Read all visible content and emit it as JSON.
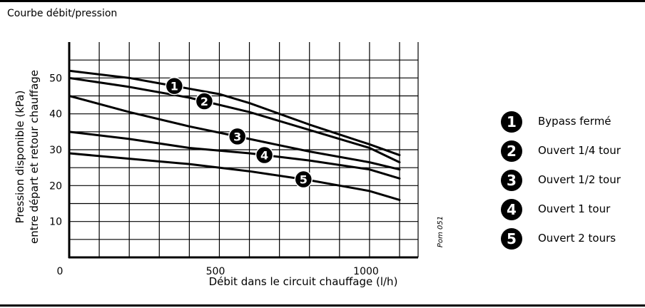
{
  "page": {
    "title": "Courbe débit/pression"
  },
  "chart_data": {
    "type": "line",
    "xlabel": "Débit dans le circuit chauffage (l/h)",
    "ylabel_lines": [
      "Pression disponible (kPa)",
      "entre départ et retour chauffage"
    ],
    "xlim": [
      0,
      1150
    ],
    "ylim": [
      0,
      60
    ],
    "x_ticks": [
      0,
      500,
      1000
    ],
    "x_tick_labels": [
      "0",
      "500",
      "1000"
    ],
    "y_ticks": [
      10,
      20,
      30,
      40,
      50
    ],
    "y_tick_labels": [
      "10",
      "20",
      "30",
      "40",
      "50"
    ],
    "grid": true,
    "side_note": "Pom 051",
    "legend_position": "right",
    "series": [
      {
        "name": "Bypass fermé",
        "badge": "1",
        "label_x": 350,
        "x": [
          0,
          200,
          400,
          500,
          600,
          800,
          1000,
          1100
        ],
        "y": [
          52,
          50,
          47,
          45.5,
          43,
          37,
          31.5,
          28.5
        ]
      },
      {
        "name": "Ouvert 1/4 tour",
        "badge": "2",
        "label_x": 450,
        "x": [
          0,
          200,
          400,
          600,
          800,
          1000,
          1100
        ],
        "y": [
          50,
          47.5,
          44.5,
          40.5,
          35.5,
          30.5,
          26.5
        ]
      },
      {
        "name": "Ouvert 1/2 tour",
        "badge": "3",
        "label_x": 560,
        "x": [
          0,
          200,
          400,
          600,
          800,
          1000,
          1100
        ],
        "y": [
          45,
          40.5,
          36.5,
          33,
          29.5,
          26.5,
          24.5
        ]
      },
      {
        "name": "Ouvert 1 tour",
        "badge": "4",
        "label_x": 650,
        "x": [
          0,
          200,
          400,
          600,
          800,
          1000,
          1100
        ],
        "y": [
          35,
          33,
          30.5,
          29,
          27,
          24.5,
          22
        ]
      },
      {
        "name": "Ouvert 2 tours",
        "badge": "5",
        "label_x": 780,
        "x": [
          0,
          200,
          400,
          600,
          800,
          1000,
          1100
        ],
        "y": [
          29,
          27.5,
          26,
          24,
          21.5,
          18.5,
          16
        ]
      }
    ]
  }
}
